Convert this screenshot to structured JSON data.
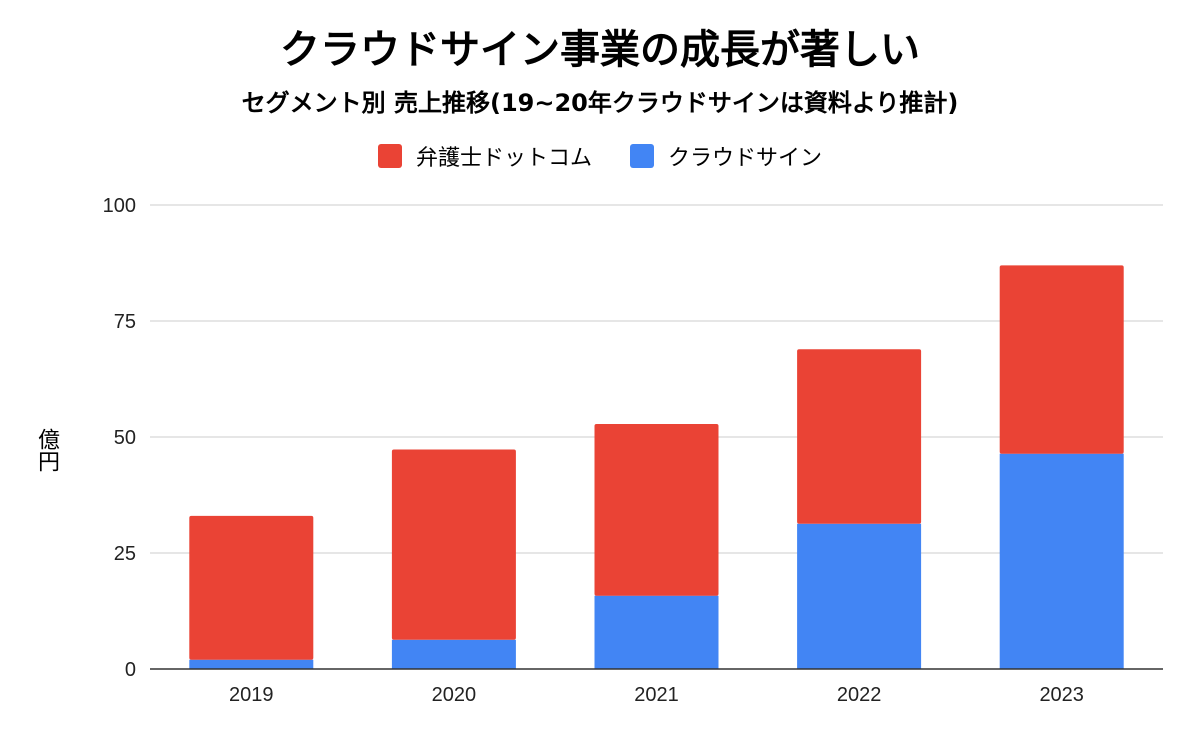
{
  "chart_data": {
    "type": "bar",
    "stacked": true,
    "title": "クラウドサイン事業の成長が著しい",
    "subtitle": "セグメント別 売上推移(19~20年クラウドサインは資料より推計)",
    "xlabel": "",
    "ylabel": "億円",
    "categories": [
      "2019",
      "2020",
      "2021",
      "2022",
      "2023"
    ],
    "ylim": [
      0,
      100
    ],
    "yticks": [
      "0",
      "25",
      "50",
      "75",
      "100"
    ],
    "grid": true,
    "legend_position": "top",
    "series": [
      {
        "name": "クラウドサイン",
        "color": "#4285f4",
        "values": [
          2,
          6.3,
          15.8,
          31.3,
          46.4
        ]
      },
      {
        "name": "弁護士ドットコム",
        "color": "#ea4335",
        "values": [
          31,
          41,
          37,
          37.6,
          40.6
        ]
      }
    ],
    "legend": [
      {
        "name": "弁護士ドットコム",
        "color": "#ea4335"
      },
      {
        "name": "クラウドサイン",
        "color": "#4285f4"
      }
    ]
  }
}
